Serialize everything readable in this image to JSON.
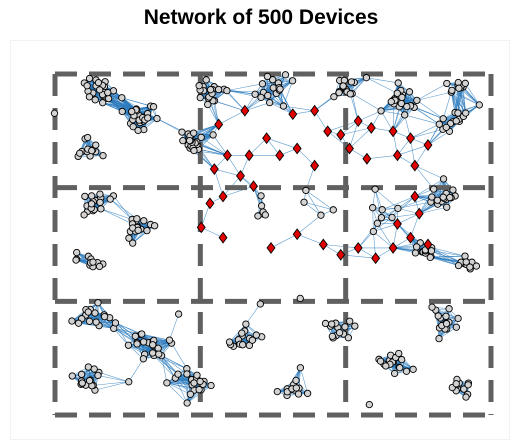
{
  "title": "Network of 500 Devices",
  "chart_data": {
    "type": "network",
    "title": "Network of 500 Devices",
    "node_count": 500,
    "x_range": [
      0,
      1
    ],
    "y_range": [
      0,
      1
    ],
    "grid": {
      "rows": 3,
      "cols": 3,
      "style": "dashed"
    },
    "colors": {
      "edge": "#2b7bbd",
      "node_fill": "#d3d3d3",
      "node_stroke": "#000000",
      "highlight_fill": "#e00000",
      "grid_line": "#606060"
    },
    "highlighted_nodes": {
      "marker": "diamond",
      "points": [
        [
          0.44,
          0.89
        ],
        [
          0.38,
          0.85
        ],
        [
          0.55,
          0.88
        ],
        [
          0.6,
          0.89
        ],
        [
          0.63,
          0.83
        ],
        [
          0.66,
          0.82
        ],
        [
          0.7,
          0.86
        ],
        [
          0.73,
          0.84
        ],
        [
          0.78,
          0.83
        ],
        [
          0.82,
          0.81
        ],
        [
          0.86,
          0.79
        ],
        [
          0.83,
          0.73
        ],
        [
          0.79,
          0.76
        ],
        [
          0.72,
          0.75
        ],
        [
          0.68,
          0.78
        ],
        [
          0.49,
          0.81
        ],
        [
          0.45,
          0.76
        ],
        [
          0.52,
          0.76
        ],
        [
          0.56,
          0.78
        ],
        [
          0.6,
          0.73
        ],
        [
          0.4,
          0.76
        ],
        [
          0.37,
          0.72
        ],
        [
          0.39,
          0.64
        ],
        [
          0.36,
          0.62
        ],
        [
          0.43,
          0.7
        ],
        [
          0.46,
          0.67
        ],
        [
          0.34,
          0.55
        ],
        [
          0.5,
          0.49
        ],
        [
          0.56,
          0.53
        ],
        [
          0.62,
          0.5
        ],
        [
          0.66,
          0.47
        ],
        [
          0.7,
          0.49
        ],
        [
          0.74,
          0.46
        ],
        [
          0.78,
          0.49
        ],
        [
          0.82,
          0.52
        ],
        [
          0.86,
          0.5
        ],
        [
          0.84,
          0.59
        ],
        [
          0.83,
          0.64
        ],
        [
          0.79,
          0.56
        ],
        [
          0.39,
          0.52
        ]
      ]
    },
    "clusters": [
      {
        "cx": 0.1,
        "cy": 0.95,
        "r": 0.08,
        "n": 22
      },
      {
        "cx": 0.2,
        "cy": 0.88,
        "r": 0.1,
        "n": 28
      },
      {
        "cx": 0.08,
        "cy": 0.78,
        "r": 0.07,
        "n": 14
      },
      {
        "cx": 0.35,
        "cy": 0.95,
        "r": 0.09,
        "n": 20
      },
      {
        "cx": 0.32,
        "cy": 0.8,
        "r": 0.07,
        "n": 22
      },
      {
        "cx": 0.5,
        "cy": 0.95,
        "r": 0.08,
        "n": 16
      },
      {
        "cx": 0.68,
        "cy": 0.96,
        "r": 0.08,
        "n": 14
      },
      {
        "cx": 0.8,
        "cy": 0.92,
        "r": 0.09,
        "n": 22
      },
      {
        "cx": 0.92,
        "cy": 0.86,
        "r": 0.07,
        "n": 14
      },
      {
        "cx": 0.93,
        "cy": 0.96,
        "r": 0.06,
        "n": 10
      },
      {
        "cx": 0.1,
        "cy": 0.62,
        "r": 0.08,
        "n": 18
      },
      {
        "cx": 0.2,
        "cy": 0.55,
        "r": 0.08,
        "n": 18
      },
      {
        "cx": 0.08,
        "cy": 0.45,
        "r": 0.07,
        "n": 12
      },
      {
        "cx": 0.9,
        "cy": 0.65,
        "r": 0.08,
        "n": 16
      },
      {
        "cx": 0.85,
        "cy": 0.48,
        "r": 0.07,
        "n": 12
      },
      {
        "cx": 0.95,
        "cy": 0.45,
        "r": 0.05,
        "n": 10
      },
      {
        "cx": 0.1,
        "cy": 0.3,
        "r": 0.08,
        "n": 16
      },
      {
        "cx": 0.22,
        "cy": 0.2,
        "r": 0.09,
        "n": 22
      },
      {
        "cx": 0.08,
        "cy": 0.1,
        "r": 0.07,
        "n": 16
      },
      {
        "cx": 0.32,
        "cy": 0.1,
        "r": 0.09,
        "n": 20
      },
      {
        "cx": 0.45,
        "cy": 0.22,
        "r": 0.09,
        "n": 16
      },
      {
        "cx": 0.55,
        "cy": 0.08,
        "r": 0.08,
        "n": 14
      },
      {
        "cx": 0.65,
        "cy": 0.25,
        "r": 0.08,
        "n": 14
      },
      {
        "cx": 0.78,
        "cy": 0.15,
        "r": 0.09,
        "n": 18
      },
      {
        "cx": 0.9,
        "cy": 0.28,
        "r": 0.08,
        "n": 16
      },
      {
        "cx": 0.93,
        "cy": 0.08,
        "r": 0.06,
        "n": 12
      },
      {
        "cx": 0.62,
        "cy": 0.6,
        "r": 0.14,
        "n": 18
      }
    ]
  }
}
